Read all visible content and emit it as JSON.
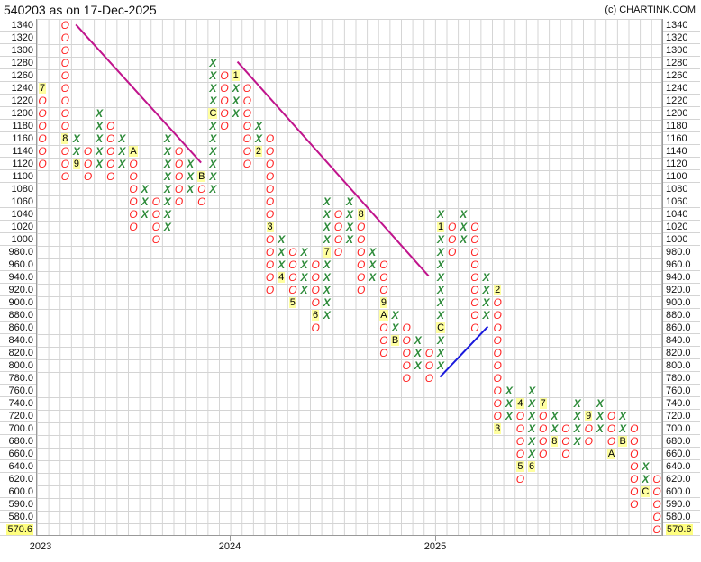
{
  "header": {
    "title": "540203 as on 17-Dec-2025",
    "copyright": "(c) CHARTINK.COM"
  },
  "colors": {
    "x": "#2e8b3a",
    "o": "#ff2020",
    "marker_bg": "#ffffa0",
    "last_price_bg": "#ffff80",
    "trendline_down": "#c0148c",
    "trendline_up": "#1a1adc"
  },
  "chart_data": {
    "type": "point-and-figure",
    "title": "540203 as on 17-Dec-2025",
    "grid": true,
    "last_price": "570.6",
    "y_levels": [
      1340,
      1320,
      1300,
      1280,
      1260,
      1240,
      1220,
      1200,
      1180,
      1160,
      1140,
      1120,
      1100,
      1080,
      1060,
      1040,
      1020,
      1000,
      980,
      960,
      940,
      920,
      900,
      880,
      860,
      840,
      820,
      800,
      780,
      760,
      740,
      720,
      700,
      680,
      660,
      640,
      620,
      600,
      590,
      580,
      570.6
    ],
    "y_labels": [
      "1340",
      "1320",
      "1300",
      "1280",
      "1260",
      "1240",
      "1220",
      "1200",
      "1180",
      "1160",
      "1140",
      "1120",
      "1100",
      "1080",
      "1060",
      "1040",
      "1020",
      "1000",
      "980.0",
      "960.0",
      "940.0",
      "920.0",
      "900.0",
      "880.0",
      "860.0",
      "840.0",
      "820.0",
      "800.0",
      "780.0",
      "760.0",
      "740.0",
      "720.0",
      "700.0",
      "680.0",
      "660.0",
      "640.0",
      "620.0",
      "600.0",
      "590.0",
      "580.0",
      "570.6"
    ],
    "x_labels": [
      "2023",
      "2024",
      "2025"
    ],
    "columns": [
      {
        "type": "O",
        "high": 1240,
        "low": 1120,
        "markers": {
          "1240": "7"
        }
      },
      {
        "type": "",
        "high": null,
        "low": null,
        "markers": {}
      },
      {
        "type": "O",
        "high": 1340,
        "low": 1100,
        "markers": {
          "1160": "8"
        }
      },
      {
        "type": "X",
        "high": 1160,
        "low": 1120,
        "markers": {
          "1120": "9"
        }
      },
      {
        "type": "O",
        "high": 1140,
        "low": 1100,
        "markers": {}
      },
      {
        "type": "X",
        "high": 1200,
        "low": 1120,
        "markers": {}
      },
      {
        "type": "O",
        "high": 1180,
        "low": 1100,
        "markers": {}
      },
      {
        "type": "X",
        "high": 1160,
        "low": 1120,
        "markers": {}
      },
      {
        "type": "O",
        "high": 1140,
        "low": 1020,
        "markers": {
          "1140": "A"
        }
      },
      {
        "type": "X",
        "high": 1080,
        "low": 1040,
        "markers": {}
      },
      {
        "type": "O",
        "high": 1060,
        "low": 1000,
        "markers": {}
      },
      {
        "type": "X",
        "high": 1160,
        "low": 1020,
        "markers": {}
      },
      {
        "type": "O",
        "high": 1140,
        "low": 1060,
        "markers": {}
      },
      {
        "type": "X",
        "high": 1120,
        "low": 1080,
        "markers": {}
      },
      {
        "type": "O",
        "high": 1100,
        "low": 1060,
        "markers": {
          "1100": "B"
        }
      },
      {
        "type": "X",
        "high": 1280,
        "low": 1080,
        "markers": {
          "1200": "C"
        }
      },
      {
        "type": "O",
        "high": 1260,
        "low": 1180,
        "markers": {}
      },
      {
        "type": "X",
        "high": 1260,
        "low": 1200,
        "markers": {
          "1260": "1"
        }
      },
      {
        "type": "O",
        "high": 1240,
        "low": 1120,
        "markers": {}
      },
      {
        "type": "X",
        "high": 1180,
        "low": 1140,
        "markers": {
          "1140": "2"
        }
      },
      {
        "type": "O",
        "high": 1160,
        "low": 920,
        "markers": {
          "1020": "3"
        }
      },
      {
        "type": "X",
        "high": 1000,
        "low": 940,
        "markers": {
          "940": "4"
        }
      },
      {
        "type": "O",
        "high": 980,
        "low": 900,
        "markers": {
          "900": "5"
        }
      },
      {
        "type": "X",
        "high": 980,
        "low": 920,
        "markers": {}
      },
      {
        "type": "O",
        "high": 960,
        "low": 860,
        "markers": {
          "880": "6"
        }
      },
      {
        "type": "X",
        "high": 1060,
        "low": 880,
        "markers": {
          "980": "7"
        }
      },
      {
        "type": "O",
        "high": 1040,
        "low": 980,
        "markers": {}
      },
      {
        "type": "X",
        "high": 1060,
        "low": 1000,
        "markers": {}
      },
      {
        "type": "O",
        "high": 1040,
        "low": 920,
        "markers": {
          "1040": "8"
        }
      },
      {
        "type": "X",
        "high": 980,
        "low": 940,
        "markers": {}
      },
      {
        "type": "O",
        "high": 960,
        "low": 820,
        "markers": {
          "900": "9",
          "880": "A"
        }
      },
      {
        "type": "X",
        "high": 880,
        "low": 840,
        "markers": {
          "840": "B"
        }
      },
      {
        "type": "O",
        "high": 860,
        "low": 780,
        "markers": {}
      },
      {
        "type": "X",
        "high": 840,
        "low": 800,
        "markers": {}
      },
      {
        "type": "O",
        "high": 820,
        "low": 780,
        "markers": {}
      },
      {
        "type": "X",
        "high": 1040,
        "low": 800,
        "markers": {
          "1020": "1",
          "860": "C"
        }
      },
      {
        "type": "O",
        "high": 1020,
        "low": 980,
        "markers": {}
      },
      {
        "type": "X",
        "high": 1040,
        "low": 1000,
        "markers": {}
      },
      {
        "type": "O",
        "high": 1020,
        "low": 860,
        "markers": {}
      },
      {
        "type": "X",
        "high": 940,
        "low": 880,
        "markers": {}
      },
      {
        "type": "O",
        "high": 920,
        "low": 700,
        "markers": {
          "920": "2",
          "700": "3"
        }
      },
      {
        "type": "X",
        "high": 760,
        "low": 720,
        "markers": {}
      },
      {
        "type": "O",
        "high": 740,
        "low": 620,
        "markers": {
          "740": "4",
          "640": "5"
        }
      },
      {
        "type": "X",
        "high": 760,
        "low": 640,
        "markers": {
          "640": "6"
        }
      },
      {
        "type": "O",
        "high": 740,
        "low": 660,
        "markers": {
          "740": "7"
        }
      },
      {
        "type": "X",
        "high": 720,
        "low": 680,
        "markers": {
          "680": "8"
        }
      },
      {
        "type": "O",
        "high": 700,
        "low": 660,
        "markers": {}
      },
      {
        "type": "X",
        "high": 740,
        "low": 680,
        "markers": {}
      },
      {
        "type": "O",
        "high": 720,
        "low": 680,
        "markers": {
          "720": "9"
        }
      },
      {
        "type": "X",
        "high": 740,
        "low": 700,
        "markers": {}
      },
      {
        "type": "O",
        "high": 720,
        "low": 660,
        "markers": {
          "660": "A"
        }
      },
      {
        "type": "X",
        "high": 720,
        "low": 680,
        "markers": {
          "680": "B"
        }
      },
      {
        "type": "O",
        "high": 700,
        "low": 590,
        "markers": {}
      },
      {
        "type": "X",
        "high": 640,
        "low": 600,
        "markers": {
          "600": "C"
        }
      },
      {
        "type": "O",
        "high": 620,
        "low": 570.6,
        "markers": {}
      }
    ]
  }
}
